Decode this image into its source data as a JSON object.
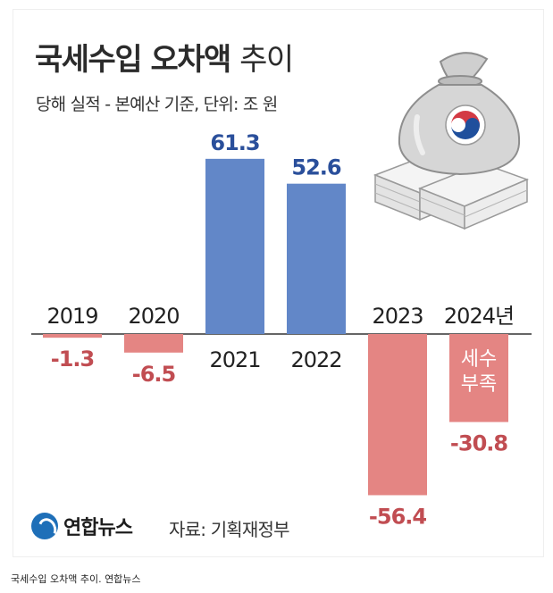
{
  "header": {
    "title_bold": "국세수입 오차액",
    "title_light": "추이",
    "subtitle": "당해 실적 - 본예산 기준, 단위: 조 원"
  },
  "footer": {
    "logo_text": "연합뉴스",
    "source": "자료: 기획재정부"
  },
  "caption": "국세수입 오차액 추이. 연합뉴스",
  "colors": {
    "positive": "#6287c8",
    "positive_label": "#2a4f9b",
    "negative": "#e48583",
    "negative_label": "#c14d52",
    "baseline": "#333333"
  },
  "chart_data": {
    "type": "bar",
    "categories": [
      "2019",
      "2020",
      "2021",
      "2022",
      "2023",
      "2024년"
    ],
    "values": [
      -1.3,
      -6.5,
      61.3,
      52.6,
      -56.4,
      -30.8
    ],
    "value_labels": [
      "-1.3",
      "-6.5",
      "61.3",
      "52.6",
      "-56.4",
      "-30.8"
    ],
    "annotation": {
      "category": "2024년",
      "text": [
        "세수",
        "부족"
      ]
    },
    "title": "국세수입 오차액 추이",
    "xlabel": "",
    "ylabel": "",
    "unit": "조 원",
    "grid": false,
    "legend": "none"
  }
}
